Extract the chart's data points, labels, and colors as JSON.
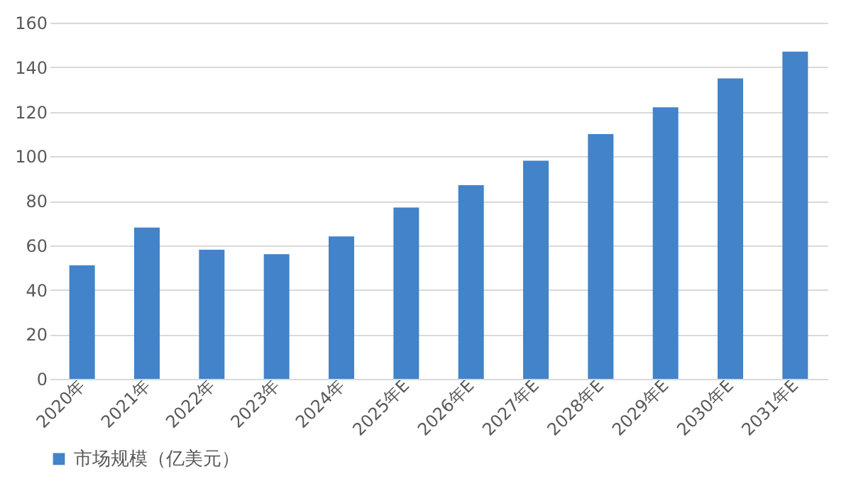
{
  "chart_data": {
    "type": "bar",
    "categories": [
      "2020年",
      "2021年",
      "2022年",
      "2023年",
      "2024年",
      "2025年E",
      "2026年E",
      "2027年E",
      "2028年E",
      "2029年E",
      "2030年E",
      "2031年E"
    ],
    "series": [
      {
        "name": "市场规模（亿美元）",
        "color": "#4283c9",
        "values": [
          51,
          68,
          58,
          56,
          64,
          77,
          87,
          98,
          110,
          122,
          135,
          147
        ]
      }
    ],
    "ylim": [
      0,
      160
    ],
    "yticks": [
      0,
      20,
      40,
      60,
      80,
      100,
      120,
      140,
      160
    ],
    "grid": "y",
    "legend": "bottom"
  }
}
